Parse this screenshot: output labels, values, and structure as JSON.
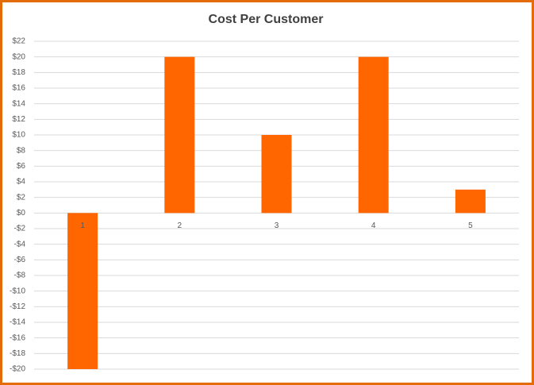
{
  "chart_data": {
    "type": "bar",
    "title": "Cost Per Customer",
    "categories": [
      "1",
      "2",
      "3",
      "4",
      "5"
    ],
    "values": [
      -20,
      20,
      10,
      20,
      3
    ],
    "color": "#ff6600",
    "ylim": [
      -20,
      22
    ],
    "yticks": [
      {
        "value": -20,
        "label": "-$20"
      },
      {
        "value": -18,
        "label": "-$18"
      },
      {
        "value": -16,
        "label": "-$16"
      },
      {
        "value": -14,
        "label": "-$14"
      },
      {
        "value": -12,
        "label": "-$12"
      },
      {
        "value": -10,
        "label": "-$10"
      },
      {
        "value": -8,
        "label": "-$8"
      },
      {
        "value": -6,
        "label": "-$6"
      },
      {
        "value": -4,
        "label": "-$4"
      },
      {
        "value": -2,
        "label": "-$2"
      },
      {
        "value": 0,
        "label": "$0"
      },
      {
        "value": 2,
        "label": "$2"
      },
      {
        "value": 4,
        "label": "$4"
      },
      {
        "value": 6,
        "label": "$6"
      },
      {
        "value": 8,
        "label": "$8"
      },
      {
        "value": 10,
        "label": "$10"
      },
      {
        "value": 12,
        "label": "$12"
      },
      {
        "value": 14,
        "label": "$14"
      },
      {
        "value": 16,
        "label": "$16"
      },
      {
        "value": 18,
        "label": "$18"
      },
      {
        "value": 20,
        "label": "$20"
      },
      {
        "value": 22,
        "label": "$22"
      }
    ],
    "grid": true
  }
}
